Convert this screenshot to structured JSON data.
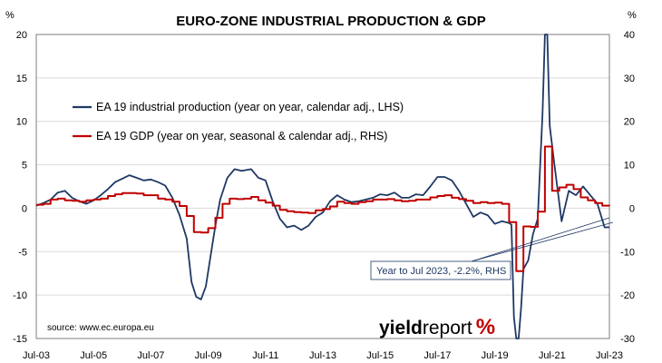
{
  "chart_data": {
    "type": "line",
    "title": "EURO-ZONE INDUSTRIAL PRODUCTION & GDP",
    "left_unit": "%",
    "right_unit": "%",
    "ylim_left": [
      -15,
      20
    ],
    "ylim_right": [
      -30,
      40
    ],
    "yticks_left": [
      "20",
      "15",
      "10",
      "5",
      "0",
      "-5",
      "-10",
      "-15"
    ],
    "yticks_right": [
      "40",
      "30",
      "20",
      "10",
      "0",
      "-10",
      "-20",
      "-30"
    ],
    "x_tick_labels": [
      "Jul-03",
      "Jul-05",
      "Jul-07",
      "Jul-09",
      "Jul-11",
      "Jul-13",
      "Jul-15",
      "Jul-17",
      "Jul-19",
      "Jul-21",
      "Jul-23"
    ],
    "grid": "horizontal",
    "legend_position": "upper-left",
    "source": "source: www.ec.europa.eu",
    "annotation": "Year to Jul 2023, -2.2%, RHS",
    "brand": {
      "part1": "yield",
      "part2": "report",
      "part3": "%"
    },
    "series": [
      {
        "name": "EA 19 industrial production (year on year, calendar adj., LHS)",
        "axis": "left",
        "color": "#1f3864",
        "points": [
          [
            "2003-07",
            0.3
          ],
          [
            "2003-10",
            0.6
          ],
          [
            "2004-01",
            1.0
          ],
          [
            "2004-04",
            1.8
          ],
          [
            "2004-07",
            2.0
          ],
          [
            "2004-10",
            1.2
          ],
          [
            "2005-01",
            0.8
          ],
          [
            "2005-04",
            0.5
          ],
          [
            "2005-07",
            0.9
          ],
          [
            "2005-10",
            1.5
          ],
          [
            "2006-01",
            2.2
          ],
          [
            "2006-04",
            3.0
          ],
          [
            "2006-07",
            3.4
          ],
          [
            "2006-10",
            3.8
          ],
          [
            "2007-01",
            3.5
          ],
          [
            "2007-04",
            3.2
          ],
          [
            "2007-07",
            3.3
          ],
          [
            "2007-10",
            3.0
          ],
          [
            "2008-01",
            2.6
          ],
          [
            "2008-04",
            1.2
          ],
          [
            "2008-07",
            -0.8
          ],
          [
            "2008-10",
            -3.5
          ],
          [
            "2008-12",
            -8.5
          ],
          [
            "2009-02",
            -10.2
          ],
          [
            "2009-04",
            -10.5
          ],
          [
            "2009-06",
            -9.0
          ],
          [
            "2009-08",
            -5.5
          ],
          [
            "2009-10",
            -2.0
          ],
          [
            "2009-12",
            1.0
          ],
          [
            "2010-03",
            3.5
          ],
          [
            "2010-06",
            4.5
          ],
          [
            "2010-09",
            4.3
          ],
          [
            "2011-01",
            4.5
          ],
          [
            "2011-04",
            3.5
          ],
          [
            "2011-07",
            3.2
          ],
          [
            "2011-10",
            0.8
          ],
          [
            "2012-01",
            -1.2
          ],
          [
            "2012-04",
            -2.2
          ],
          [
            "2012-07",
            -2.0
          ],
          [
            "2012-10",
            -2.5
          ],
          [
            "2013-01",
            -2.0
          ],
          [
            "2013-04",
            -1.0
          ],
          [
            "2013-07",
            -0.5
          ],
          [
            "2013-10",
            0.8
          ],
          [
            "2014-01",
            1.5
          ],
          [
            "2014-04",
            1.0
          ],
          [
            "2014-07",
            0.7
          ],
          [
            "2014-10",
            0.8
          ],
          [
            "2015-01",
            1.0
          ],
          [
            "2015-04",
            1.2
          ],
          [
            "2015-07",
            1.6
          ],
          [
            "2015-10",
            1.5
          ],
          [
            "2016-01",
            1.8
          ],
          [
            "2016-04",
            1.2
          ],
          [
            "2016-07",
            1.2
          ],
          [
            "2016-10",
            1.6
          ],
          [
            "2017-01",
            1.5
          ],
          [
            "2017-04",
            2.5
          ],
          [
            "2017-07",
            3.6
          ],
          [
            "2017-10",
            3.6
          ],
          [
            "2018-01",
            3.2
          ],
          [
            "2018-04",
            2.0
          ],
          [
            "2018-07",
            0.5
          ],
          [
            "2018-10",
            -1.0
          ],
          [
            "2019-01",
            -0.5
          ],
          [
            "2019-04",
            -0.8
          ],
          [
            "2019-07",
            -1.8
          ],
          [
            "2019-10",
            -1.5
          ],
          [
            "2020-01",
            -1.7
          ],
          [
            "2020-02",
            -1.9
          ],
          [
            "2020-03",
            -12.5
          ],
          [
            "2020-04",
            -28.0
          ],
          [
            "2020-05",
            -20.0
          ],
          [
            "2020-06",
            -11.5
          ],
          [
            "2020-07",
            -7.0
          ],
          [
            "2020-09",
            -6.0
          ],
          [
            "2020-11",
            -3.0
          ],
          [
            "2021-01",
            -1.2
          ],
          [
            "2021-03",
            11.0
          ],
          [
            "2021-04",
            40.0
          ],
          [
            "2021-05",
            20.0
          ],
          [
            "2021-06",
            9.5
          ],
          [
            "2021-08",
            5.0
          ],
          [
            "2021-11",
            -1.5
          ],
          [
            "2022-02",
            2.0
          ],
          [
            "2022-05",
            1.5
          ],
          [
            "2022-08",
            2.5
          ],
          [
            "2022-11",
            1.5
          ],
          [
            "2023-02",
            0.5
          ],
          [
            "2023-05",
            -2.2
          ],
          [
            "2023-07",
            -2.2
          ]
        ]
      },
      {
        "name": "EA 19 GDP (year on year, seasonal & calendar adj., RHS)",
        "axis": "right",
        "color": "#c00000",
        "points": [
          [
            "2003-07",
            0.8
          ],
          [
            "2003-10",
            1.0
          ],
          [
            "2004-01",
            2.0
          ],
          [
            "2004-04",
            2.2
          ],
          [
            "2004-07",
            1.8
          ],
          [
            "2004-10",
            1.7
          ],
          [
            "2005-01",
            1.5
          ],
          [
            "2005-04",
            1.8
          ],
          [
            "2005-07",
            2.0
          ],
          [
            "2005-10",
            2.2
          ],
          [
            "2006-01",
            2.8
          ],
          [
            "2006-04",
            3.2
          ],
          [
            "2006-07",
            3.5
          ],
          [
            "2006-10",
            3.5
          ],
          [
            "2007-01",
            3.4
          ],
          [
            "2007-04",
            3.0
          ],
          [
            "2007-07",
            3.0
          ],
          [
            "2007-10",
            2.2
          ],
          [
            "2008-01",
            2.0
          ],
          [
            "2008-04",
            1.5
          ],
          [
            "2008-07",
            0.5
          ],
          [
            "2008-10",
            -1.8
          ],
          [
            "2009-01",
            -5.5
          ],
          [
            "2009-04",
            -5.6
          ],
          [
            "2009-07",
            -4.6
          ],
          [
            "2009-10",
            -2.2
          ],
          [
            "2010-01",
            1.0
          ],
          [
            "2010-04",
            2.2
          ],
          [
            "2010-07",
            2.1
          ],
          [
            "2010-10",
            2.2
          ],
          [
            "2011-01",
            2.6
          ],
          [
            "2011-04",
            1.8
          ],
          [
            "2011-07",
            1.3
          ],
          [
            "2011-10",
            0.6
          ],
          [
            "2012-01",
            -0.4
          ],
          [
            "2012-04",
            -0.7
          ],
          [
            "2012-07",
            -0.9
          ],
          [
            "2012-10",
            -1.0
          ],
          [
            "2013-01",
            -1.1
          ],
          [
            "2013-04",
            -0.5
          ],
          [
            "2013-07",
            -0.2
          ],
          [
            "2013-10",
            0.4
          ],
          [
            "2014-01",
            1.5
          ],
          [
            "2014-04",
            1.2
          ],
          [
            "2014-07",
            1.0
          ],
          [
            "2014-10",
            1.4
          ],
          [
            "2015-01",
            1.6
          ],
          [
            "2015-04",
            2.0
          ],
          [
            "2015-07",
            2.0
          ],
          [
            "2015-10",
            2.1
          ],
          [
            "2016-01",
            1.8
          ],
          [
            "2016-04",
            1.6
          ],
          [
            "2016-07",
            1.7
          ],
          [
            "2016-10",
            2.0
          ],
          [
            "2017-01",
            2.0
          ],
          [
            "2017-04",
            2.5
          ],
          [
            "2017-07",
            2.8
          ],
          [
            "2017-10",
            3.0
          ],
          [
            "2018-01",
            2.4
          ],
          [
            "2018-04",
            2.1
          ],
          [
            "2018-07",
            1.7
          ],
          [
            "2018-10",
            1.2
          ],
          [
            "2019-01",
            1.4
          ],
          [
            "2019-04",
            1.2
          ],
          [
            "2019-07",
            1.3
          ],
          [
            "2019-10",
            1.0
          ],
          [
            "2020-01",
            -3.2
          ],
          [
            "2020-04",
            -14.5
          ],
          [
            "2020-07",
            -4.2
          ],
          [
            "2020-10",
            -4.3
          ],
          [
            "2021-01",
            -0.8
          ],
          [
            "2021-04",
            14.2
          ],
          [
            "2021-07",
            4.0
          ],
          [
            "2021-10",
            4.8
          ],
          [
            "2022-01",
            5.4
          ],
          [
            "2022-04",
            4.4
          ],
          [
            "2022-07",
            2.5
          ],
          [
            "2022-10",
            1.8
          ],
          [
            "2023-01",
            1.2
          ],
          [
            "2023-04",
            0.6
          ],
          [
            "2023-07",
            0.5
          ]
        ]
      }
    ]
  }
}
